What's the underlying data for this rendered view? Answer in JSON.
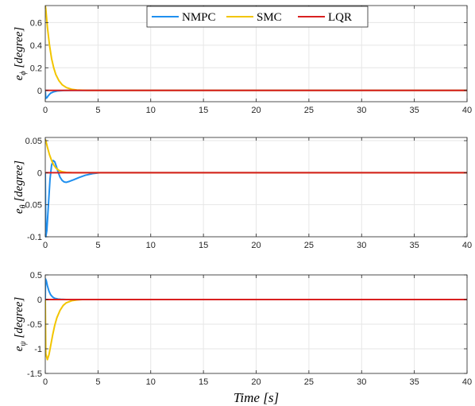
{
  "chart_data": [
    {
      "type": "line",
      "ylabel": "e_ϕ [degree]",
      "xlim": [
        0,
        40
      ],
      "ylim": [
        -0.1,
        0.75
      ],
      "xticks": [
        0,
        5,
        10,
        15,
        20,
        25,
        30,
        35,
        40
      ],
      "yticks": [
        0,
        0.2,
        0.4,
        0.6
      ],
      "ytick_labels": [
        "0",
        "0.2",
        "0.4",
        "0.6"
      ],
      "grid": true,
      "legend": {
        "placement": "top-center",
        "entries": [
          "NMPC",
          "SMC",
          "LQR"
        ]
      },
      "series": [
        {
          "name": "NMPC",
          "color": "#1f8fef",
          "x": [
            0,
            0.05,
            0.15,
            0.3,
            0.5,
            0.8,
            1.2,
            1.8,
            2.5,
            3.5,
            5,
            40
          ],
          "y": [
            0,
            -0.07,
            -0.065,
            -0.045,
            -0.025,
            -0.012,
            -0.004,
            -0.001,
            0,
            0,
            0,
            0
          ]
        },
        {
          "name": "SMC",
          "color": "#f2c500",
          "x": [
            0,
            0.05,
            0.2,
            0.4,
            0.6,
            0.8,
            1.0,
            1.3,
            1.6,
            2.0,
            2.5,
            3.0,
            4.0,
            40
          ],
          "y": [
            0.75,
            0.72,
            0.56,
            0.4,
            0.28,
            0.2,
            0.14,
            0.085,
            0.05,
            0.025,
            0.01,
            0.004,
            0,
            0
          ]
        },
        {
          "name": "LQR",
          "color": "#d92020",
          "x": [
            0,
            40
          ],
          "y": [
            0,
            0
          ]
        }
      ]
    },
    {
      "type": "line",
      "ylabel": "e_θ [degree]",
      "xlim": [
        0,
        40
      ],
      "ylim": [
        -0.1,
        0.055
      ],
      "xticks": [
        0,
        5,
        10,
        15,
        20,
        25,
        30,
        35,
        40
      ],
      "yticks": [
        -0.1,
        -0.05,
        0,
        0.05
      ],
      "ytick_labels": [
        "-0.1",
        "-0.05",
        "0",
        "0.05"
      ],
      "grid": true,
      "series": [
        {
          "name": "NMPC",
          "color": "#1f8fef",
          "x": [
            0,
            0.05,
            0.15,
            0.3,
            0.45,
            0.6,
            0.75,
            0.9,
            1.05,
            1.2,
            1.4,
            1.6,
            1.8,
            2.0,
            2.3,
            2.7,
            3.2,
            3.8,
            4.5,
            5.2,
            40
          ],
          "y": [
            0,
            -0.1,
            -0.09,
            -0.05,
            -0.01,
            0.012,
            0.019,
            0.017,
            0.01,
            0.002,
            -0.007,
            -0.012,
            -0.0145,
            -0.015,
            -0.0135,
            -0.011,
            -0.0075,
            -0.004,
            -0.0015,
            0,
            0
          ]
        },
        {
          "name": "SMC",
          "color": "#f2c500",
          "x": [
            0,
            0.05,
            0.2,
            0.4,
            0.6,
            0.8,
            1.0,
            1.3,
            1.6,
            2.0,
            2.5,
            3.0,
            40
          ],
          "y": [
            0.052,
            0.05,
            0.04,
            0.028,
            0.019,
            0.012,
            0.0075,
            0.0035,
            0.0015,
            0.0005,
            0.0001,
            0,
            0
          ]
        },
        {
          "name": "LQR",
          "color": "#d92020",
          "x": [
            0,
            40
          ],
          "y": [
            0,
            0
          ]
        }
      ]
    },
    {
      "type": "line",
      "ylabel": "e_ψ [degree]",
      "xlabel": "Time [s]",
      "xlim": [
        0,
        40
      ],
      "ylim": [
        -1.5,
        0.5
      ],
      "xticks": [
        0,
        5,
        10,
        15,
        20,
        25,
        30,
        35,
        40
      ],
      "yticks": [
        -1.5,
        -1,
        -0.5,
        0,
        0.5
      ],
      "ytick_labels": [
        "-1.5",
        "-1",
        "-0.5",
        "0",
        "0.5"
      ],
      "grid": true,
      "series": [
        {
          "name": "NMPC",
          "color": "#1f8fef",
          "x": [
            0,
            0.02,
            0.1,
            0.2,
            0.35,
            0.5,
            0.7,
            0.9,
            1.2,
            1.6,
            2.0,
            40
          ],
          "y": [
            0,
            0.42,
            0.38,
            0.28,
            0.17,
            0.1,
            0.05,
            0.025,
            0.01,
            0.003,
            0,
            0
          ]
        },
        {
          "name": "SMC",
          "color": "#f2c500",
          "x": [
            0,
            0.05,
            0.2,
            0.35,
            0.5,
            0.7,
            0.9,
            1.1,
            1.4,
            1.7,
            2.0,
            2.5,
            3.0,
            3.5,
            40
          ],
          "y": [
            0,
            -1.1,
            -1.22,
            -1.12,
            -0.95,
            -0.72,
            -0.52,
            -0.37,
            -0.22,
            -0.12,
            -0.065,
            -0.025,
            -0.008,
            0,
            0
          ]
        },
        {
          "name": "LQR",
          "color": "#d92020",
          "x": [
            0,
            40
          ],
          "y": [
            0,
            0
          ]
        }
      ]
    }
  ]
}
